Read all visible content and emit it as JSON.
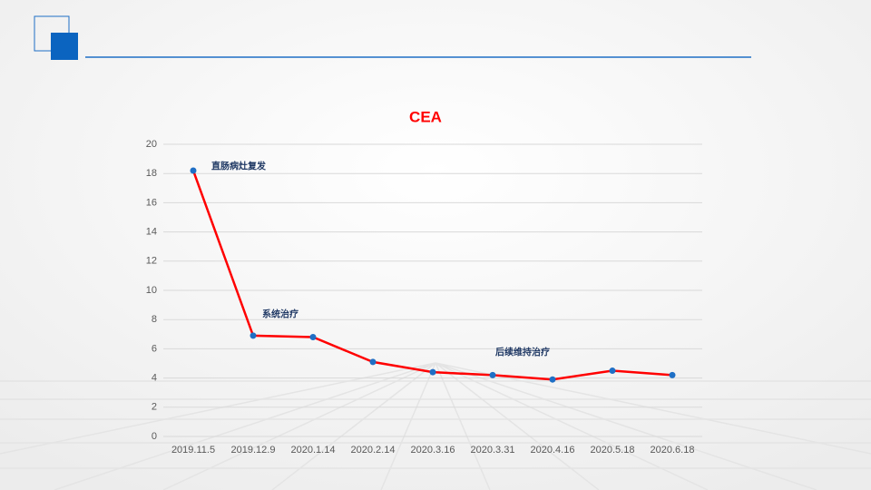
{
  "chart_data": {
    "type": "line",
    "title": "CEA",
    "categories": [
      "2019.11.5",
      "2019.12.9",
      "2020.1.14",
      "2020.2.14",
      "2020.3.16",
      "2020.3.31",
      "2020.4.16",
      "2020.5.18",
      "2020.6.18"
    ],
    "series": [
      {
        "name": "CEA",
        "color": "#ff0000",
        "values": [
          18.2,
          6.9,
          6.8,
          5.1,
          4.4,
          4.2,
          3.9,
          4.5,
          4.2
        ]
      }
    ],
    "marker_color": "#1f6fc5",
    "annotations": [
      "直肠病灶复发",
      "系统治疗",
      "后续维持治疗"
    ],
    "ylim": [
      0,
      20
    ],
    "yticks": [
      0,
      2,
      4,
      6,
      8,
      10,
      12,
      14,
      16,
      18,
      20
    ],
    "grid": true
  }
}
